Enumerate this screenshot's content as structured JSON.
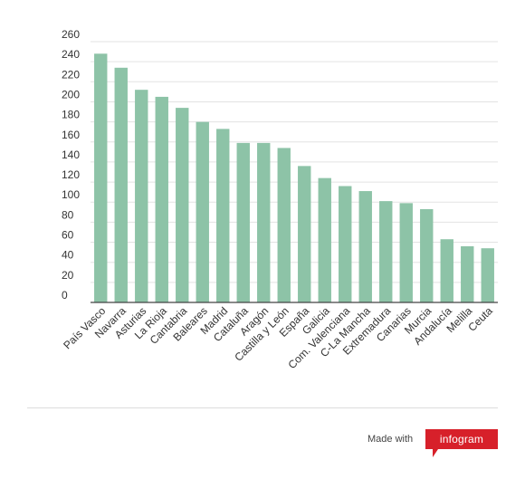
{
  "chart_data": {
    "type": "bar",
    "title": "",
    "xlabel": "",
    "ylabel": "",
    "categories": [
      "País Vasco",
      "Navarra",
      "Asturias",
      "La Rioja",
      "Cantabria",
      "Baleares",
      "Madrid",
      "Cataluña",
      "Aragón",
      "Castilla y León",
      "España",
      "Galicia",
      "Com. Valenciana",
      "C-La Mancha",
      "Extremadura",
      "Canarias",
      "Murcia",
      "Andalucía",
      "Melilla",
      "Ceuta"
    ],
    "values": [
      248,
      234,
      212,
      205,
      194,
      180,
      173,
      159,
      159,
      154,
      136,
      124,
      116,
      111,
      101,
      99,
      93,
      63,
      56,
      54
    ],
    "yticks": [
      "0",
      "20",
      "40",
      "60",
      "80",
      "100",
      "120",
      "140",
      "160",
      "180",
      "200",
      "220",
      "240",
      "260"
    ],
    "ylim": [
      0,
      260
    ],
    "grid": true,
    "legend": "none",
    "bar_color": "#8dc3a7"
  },
  "footer": {
    "made_with": "Made with",
    "brand": "infogram",
    "brand_color": "#d7202a"
  }
}
